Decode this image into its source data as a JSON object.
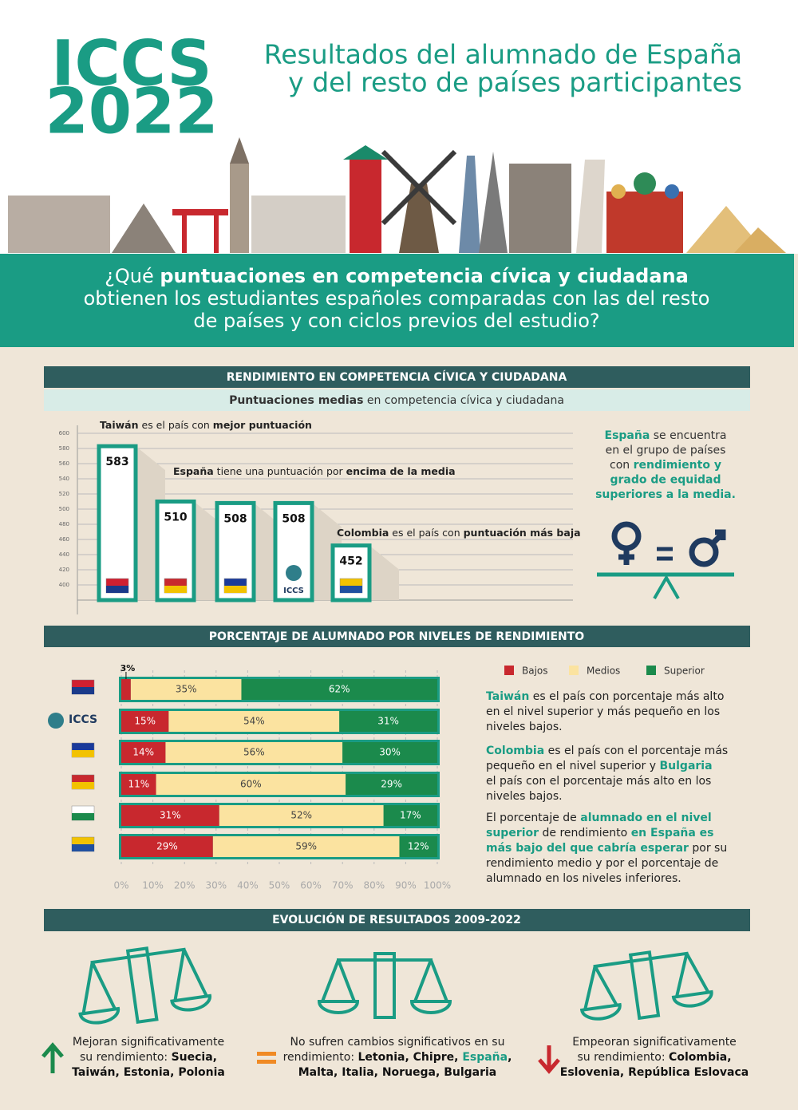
{
  "header": {
    "logo": [
      "ICCS",
      "2022"
    ],
    "title": [
      "Resultados del alumnado de España",
      "y del resto de países participantes"
    ]
  },
  "question": [
    [
      "¿Qué ",
      {
        "bold": "puntuaciones en competencia cívica y ciudadana"
      }
    ],
    [
      "obtienen los estudiantes españoles comparadas con las del resto"
    ],
    [
      "de países y con ciclos previos del estudio?"
    ]
  ],
  "chart_data": [
    {
      "type": "bar",
      "title": "RENDIMIENTO EN COMPETENCIA CÍVICA Y CIUDADANA",
      "subtitle": [
        [
          {
            "bold": "Puntuaciones medias"
          },
          " en competencia cívica y ciudadana"
        ]
      ],
      "categories": [
        null,
        null,
        null,
        "ICCS",
        null
      ],
      "values": [
        583,
        510,
        508,
        508,
        452
      ],
      "color": "#1a9c84",
      "ylim": [
        380,
        600
      ],
      "yticks": [
        400,
        420,
        440,
        460,
        480,
        500,
        520,
        540,
        560,
        580,
        600
      ],
      "grid": true,
      "annotations": [
        [
          [
            {
              "bold": "Taiwán"
            },
            " es el país con ",
            {
              "bold": "mejor puntuación"
            }
          ]
        ],
        [
          [
            {
              "bold": "España"
            },
            " tiene una puntuación por ",
            {
              "bold": "encima de la media"
            }
          ]
        ],
        [
          [
            {
              "bold": "Colombia"
            },
            " es el país con ",
            {
              "bold": "puntuación más baja"
            }
          ]
        ]
      ],
      "note": [
        [
          {
            "highlight": "España"
          },
          " se encuentra"
        ],
        [
          "en el grupo de países"
        ],
        [
          "con ",
          {
            "highlight": "rendimiento y"
          }
        ],
        [
          {
            "highlight": "grado de equidad"
          }
        ],
        [
          {
            "highlight": "superiores a la media."
          }
        ]
      ]
    },
    {
      "type": "stacked_bar_h",
      "title": "PORCENTAJE DE ALUMNADO POR NIVELES DE RENDIMIENTO",
      "categories": [
        null,
        "ICCS",
        null,
        null,
        null,
        null
      ],
      "series": [
        {
          "name": "Bajos",
          "color": "#c8282e",
          "values": [
            3,
            15,
            14,
            11,
            31,
            29
          ],
          "value_labels": [
            "3%",
            "15%",
            "14%",
            "11%",
            "31%",
            "29%"
          ]
        },
        {
          "name": "Medios",
          "color": "#fbe3a0",
          "values": [
            35,
            54,
            56,
            60,
            52,
            59
          ],
          "value_labels": [
            "35%",
            "54%",
            "56%",
            "60%",
            "52%",
            "59%"
          ]
        },
        {
          "name": "Superior",
          "color": "#1b8a4c",
          "values": [
            62,
            31,
            30,
            29,
            17,
            12
          ],
          "value_labels": [
            "62%",
            "31%",
            "30%",
            "29%",
            "17%",
            "12%"
          ]
        }
      ],
      "xlim": [
        0,
        100
      ],
      "xticks": [
        {
          "value": 0,
          "label": "0%"
        },
        {
          "value": 10,
          "label": "10%"
        },
        {
          "value": 20,
          "label": "20%"
        },
        {
          "value": 30,
          "label": "30%"
        },
        {
          "value": 40,
          "label": "40%"
        },
        {
          "value": 50,
          "label": "50%"
        },
        {
          "value": 60,
          "label": "60%"
        },
        {
          "value": 70,
          "label": "70%"
        },
        {
          "value": 80,
          "label": "80%"
        },
        {
          "value": 90,
          "label": "90%"
        },
        {
          "value": 100,
          "label": "100%"
        }
      ],
      "grid": true,
      "notes": [
        [
          [
            {
              "highlight": "Taiwán"
            },
            " es el país con porcentaje más alto"
          ],
          [
            "en el nivel superior y más pequeño en los"
          ],
          [
            "niveles bajos."
          ]
        ],
        [
          [
            {
              "highlight": "Colombia"
            },
            " es el país con el porcentaje más"
          ],
          [
            "pequeño en el nivel superior y ",
            {
              "highlight": "Bulgaria"
            }
          ],
          [
            "el país con el porcentaje más alto en los"
          ],
          [
            "niveles bajos."
          ]
        ],
        [
          [
            "El porcentaje de ",
            {
              "highlight": "alumnado en el nivel"
            }
          ],
          [
            {
              "highlight": "superior"
            },
            " de rendimiento ",
            {
              "highlight": "en España es"
            }
          ],
          [
            {
              "highlight": "más bajo del que cabría esperar"
            },
            " por su"
          ],
          [
            "rendimiento medio y por el porcentaje de"
          ],
          [
            "alumnado en los niveles inferiores."
          ]
        ]
      ]
    }
  ],
  "evolution": {
    "title": "EVOLUCIÓN DE RESULTADOS 2009-2022",
    "items": [
      [
        [
          "Mejoran significativamente"
        ],
        [
          "su rendimiento: ",
          {
            "bold": "Suecia,"
          }
        ],
        [
          {
            "bold": "Taiwán, Estonia, Polonia"
          }
        ]
      ],
      [
        [
          "No sufren cambios significativos en su"
        ],
        [
          "rendimiento: ",
          {
            "bold": "Letonia, Chipre, "
          },
          {
            "highlight": "España"
          },
          {
            "bold": ","
          }
        ],
        [
          {
            "bold": "Malta, Italia, Noruega, Bulgaria"
          }
        ]
      ],
      [
        [
          "Empeoran significativamente"
        ],
        [
          "su rendimiento: ",
          {
            "bold": "Colombia,"
          }
        ],
        [
          {
            "bold": "Eslovenia, República Eslovaca"
          }
        ]
      ]
    ]
  }
}
